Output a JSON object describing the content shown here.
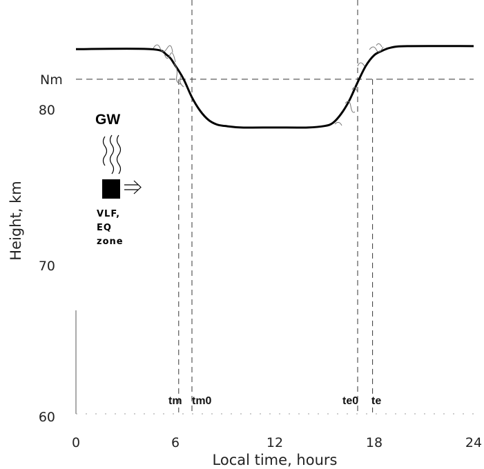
{
  "chart_data": {
    "type": "line",
    "title": "",
    "xlabel": "Local time, hours",
    "ylabel": "Height, km",
    "xlim": [
      0,
      24
    ],
    "ylim": [
      60,
      85
    ],
    "x_ticks": [
      0,
      6,
      12,
      18,
      24
    ],
    "y_ticks": [
      60,
      70,
      80
    ],
    "x_tick_labels": [
      "0",
      "6",
      "12",
      "18",
      "24"
    ],
    "y_tick_labels": [
      "60",
      "70",
      "80"
    ],
    "grid": false,
    "series": [
      {
        "x": [
          0,
          4.5,
          5.5,
          6,
          6.5,
          7,
          7.5,
          8,
          8.5,
          9,
          10,
          12,
          14,
          15,
          15.5,
          16,
          16.5,
          17,
          17.5,
          18,
          18.5,
          19,
          20,
          24
        ],
        "y": [
          84.2,
          84.2,
          83.8,
          83.1,
          82.2,
          81.0,
          80.1,
          79.5,
          79.2,
          79.1,
          79.0,
          79.0,
          79.0,
          79.1,
          79.3,
          79.9,
          80.8,
          82.0,
          83.1,
          83.8,
          84.1,
          84.3,
          84.4,
          84.4
        ]
      }
    ],
    "reference_line": {
      "label": "Nm",
      "y": 82.2
    },
    "markers": [
      {
        "label": "tm",
        "x": 6.2
      },
      {
        "label": "tm0",
        "x": 7.0
      },
      {
        "label": "te0",
        "x": 17.0
      },
      {
        "label": "te",
        "x": 17.9
      }
    ],
    "annotations": {
      "gw_title": "GW",
      "source_lines": [
        "VLF,",
        "EQ",
        "zone"
      ]
    }
  }
}
